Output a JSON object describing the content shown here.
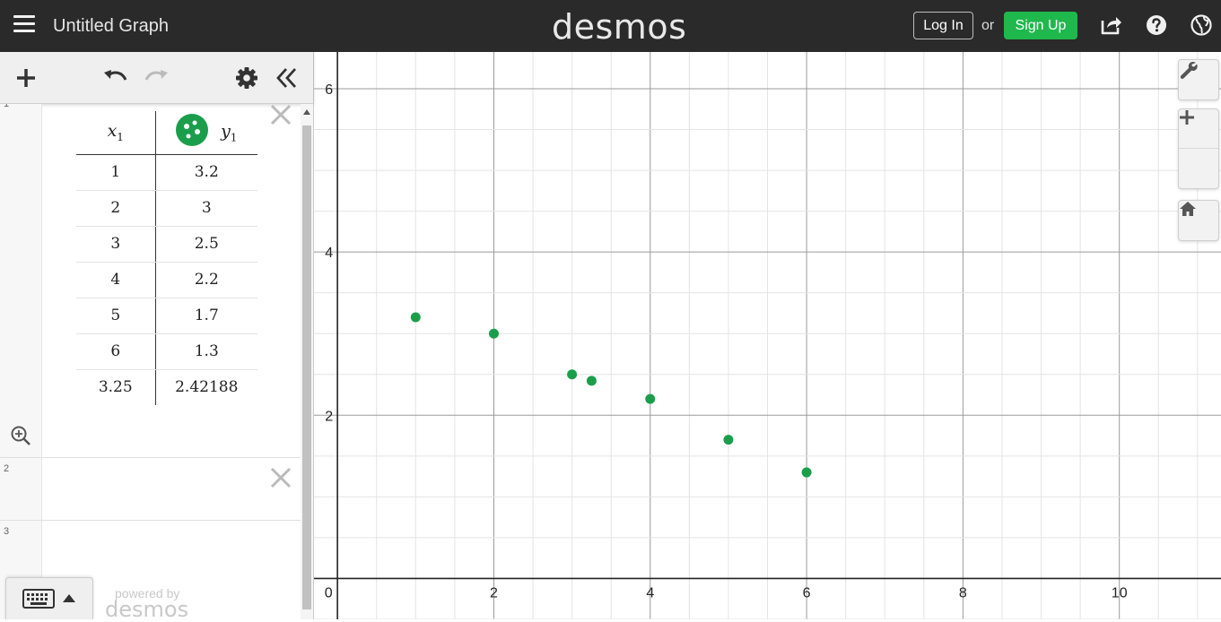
{
  "header": {
    "title": "Untitled Graph",
    "logo": "desmos",
    "login_label": "Log In",
    "or_label": "or",
    "signup_label": "Sign Up"
  },
  "expressions": [
    {
      "number": "1",
      "type": "table",
      "columns": [
        {
          "var": "x",
          "sub": "1"
        },
        {
          "var": "y",
          "sub": "1"
        }
      ],
      "rows": [
        [
          "1",
          "3.2"
        ],
        [
          "2",
          "3"
        ],
        [
          "3",
          "2.5"
        ],
        [
          "4",
          "2.2"
        ],
        [
          "5",
          "1.7"
        ],
        [
          "6",
          "1.3"
        ],
        [
          "3.25",
          "2.42188"
        ]
      ],
      "point_color": "#1b9e4b"
    },
    {
      "number": "2",
      "type": "empty"
    },
    {
      "number": "3",
      "type": "empty"
    }
  ],
  "footer": {
    "powered_by": "powered by",
    "logo": "desmos"
  },
  "chart_data": {
    "type": "scatter",
    "x": [
      1,
      2,
      3,
      3.25,
      4,
      5,
      6
    ],
    "y": [
      3.2,
      3,
      2.5,
      2.42188,
      2.2,
      1.7,
      1.3
    ],
    "xlim": [
      -0.3,
      11.3
    ],
    "ylim": [
      -0.5,
      6.45
    ],
    "grid": true,
    "x_ticks": [
      "0",
      "2",
      "4",
      "6",
      "8",
      "10"
    ],
    "y_ticks": [
      "2",
      "4",
      "6"
    ],
    "point_color": "#1b9e4b"
  }
}
